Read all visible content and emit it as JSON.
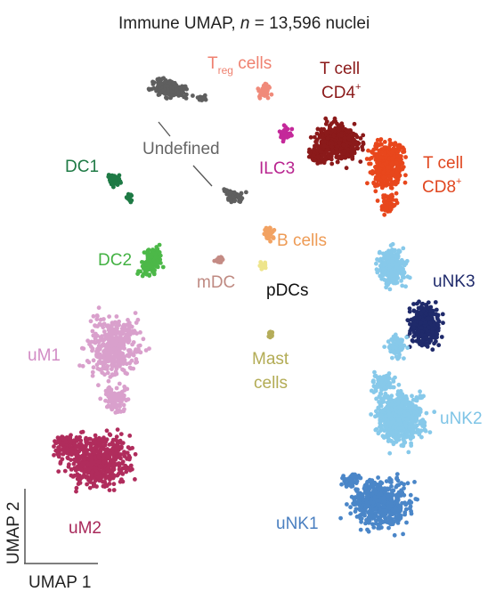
{
  "chart_data": {
    "type": "scatter",
    "title_prefix": "Immune UMAP, ",
    "title_n": "n",
    "title_suffix": " = 13,596 nuclei",
    "xlabel": "UMAP 1",
    "ylabel": "UMAP 2",
    "grid": false,
    "legend": "none",
    "clusters": [
      {
        "name": "T cell CD4+",
        "label_lines": [
          "T cell",
          "CD4"
        ],
        "label_sup": "+",
        "color": "#8b1a1a",
        "label_color": "#8b1a1a"
      },
      {
        "name": "T cell CD8+",
        "label_lines": [
          "T cell",
          "CD8"
        ],
        "label_sup": "+",
        "color": "#e8471c",
        "label_color": "#e0461f"
      },
      {
        "name": "Treg cells",
        "label_main": "T",
        "label_sub": "reg",
        "label_rest": " cells",
        "color": "#f08a7a",
        "label_color": "#ef8170"
      },
      {
        "name": "ILC3",
        "label": "ILC3",
        "color": "#c4289a",
        "label_color": "#b8248f"
      },
      {
        "name": "uNK3",
        "label": "uNK3",
        "color": "#1f2a6b",
        "label_color": "#1f2a6b"
      },
      {
        "name": "uNK2",
        "label": "uNK2",
        "color": "#87c9ea",
        "label_color": "#7ec4e6"
      },
      {
        "name": "uNK1",
        "label": "uNK1",
        "color": "#4a86c8",
        "label_color": "#4a7fc0"
      },
      {
        "name": "Undefined",
        "label": "Undefined",
        "color": "#5f5f5f",
        "label_color": "#666666"
      },
      {
        "name": "DC1",
        "label": "DC1",
        "color": "#1e7a45",
        "label_color": "#1e7a45"
      },
      {
        "name": "DC2",
        "label": "DC2",
        "color": "#4cb848",
        "label_color": "#43b243"
      },
      {
        "name": "mDC",
        "label": "mDC",
        "color": "#c48b84",
        "label_color": "#bf8a82"
      },
      {
        "name": "B cells",
        "label": "B cells",
        "color": "#f2a262",
        "label_color": "#ee9b55"
      },
      {
        "name": "pDCs",
        "label": "pDCs",
        "color": "#eee58c",
        "label_color": "#111111"
      },
      {
        "name": "Mast cells",
        "label_lines": [
          "Mast",
          "cells"
        ],
        "color": "#b5ad5a",
        "label_color": "#b3ac55"
      },
      {
        "name": "uM1",
        "label": "uM1",
        "color": "#d9a0cc",
        "label_color": "#d28cc5"
      },
      {
        "name": "uM2",
        "label": "uM2",
        "color": "#b02c5c",
        "label_color": "#a8285a"
      }
    ],
    "axis_color": "#555555"
  }
}
